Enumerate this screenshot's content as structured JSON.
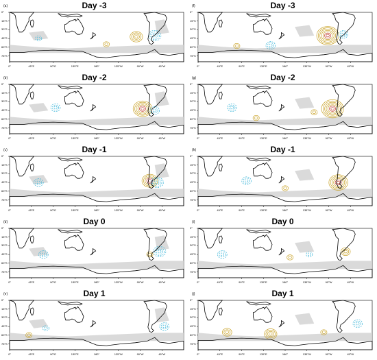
{
  "panels": [
    {
      "label": "(a)",
      "title": "Day -3"
    },
    {
      "label": "(f)",
      "title": "Day -3"
    },
    {
      "label": "(b)",
      "title": "Day -2"
    },
    {
      "label": "(g)",
      "title": "Day -2"
    },
    {
      "label": "(c)",
      "title": "Day -1"
    },
    {
      "label": "(h)",
      "title": "Day -1"
    },
    {
      "label": "(d)",
      "title": "Day 0"
    },
    {
      "label": "(i)",
      "title": "Day 0"
    },
    {
      "label": "(e)",
      "title": "Day 1"
    },
    {
      "label": "(j)",
      "title": "Day 1"
    }
  ],
  "lat_ticks": [
    "0°",
    "15°S",
    "30°S",
    "45°S",
    "60°S",
    "75°S"
  ],
  "lon_ticks": [
    "0°",
    "45°E",
    "90°E",
    "135°E",
    "180°",
    "135°W",
    "90°W",
    "45°W"
  ],
  "colors": {
    "positive_contour": "#c9a227",
    "strong_positive_contour": "#c0392b",
    "negative_contour": "#39b4d8",
    "strong_negative_contour": "#2a4fc9",
    "shading": "#d4d4d4",
    "coastline": "#000000"
  },
  "icons": {
    "map": "world-map-icon"
  }
}
